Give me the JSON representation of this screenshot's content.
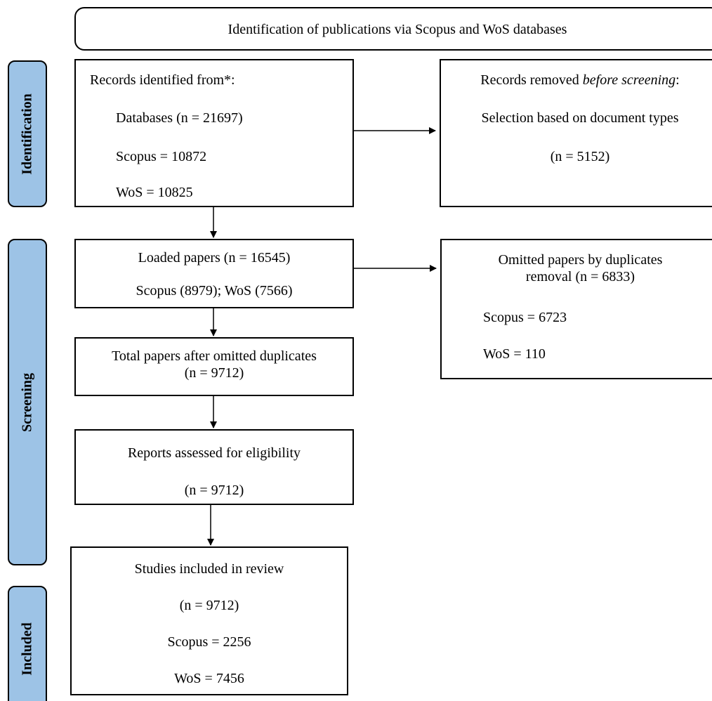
{
  "header": "Identification of publications via Scopus and WoS databases",
  "phases": {
    "identification": "Identification",
    "screening": "Screening",
    "included": "Included"
  },
  "records_identified": {
    "title": "Records identified from*:",
    "databases": "Databases (n = 21697)",
    "scopus": "Scopus = 10872",
    "wos": "WoS = 10825"
  },
  "records_removed": {
    "title_prefix": "Records removed ",
    "title_emph": "before screening",
    "title_suffix": ":",
    "selection": "Selection based on document types",
    "count": "(n = 5152)"
  },
  "loaded_papers": {
    "title": "Loaded papers (n = 16545)",
    "split": "Scopus (8979); WoS (7566)"
  },
  "omitted_papers": {
    "line1": "Omitted papers by duplicates",
    "line2": "removal (n = 6833)",
    "scopus": "Scopus = 6723",
    "wos": "WoS = 110"
  },
  "after_duplicates": {
    "line1": "Total papers after omitted duplicates",
    "line2": "(n = 9712)"
  },
  "eligibility": {
    "title": "Reports assessed for eligibility",
    "count": "(n = 9712)"
  },
  "included_studies": {
    "title": "Studies included in review",
    "count": "(n = 9712)",
    "scopus": "Scopus = 2256",
    "wos": "WoS = 7456"
  }
}
